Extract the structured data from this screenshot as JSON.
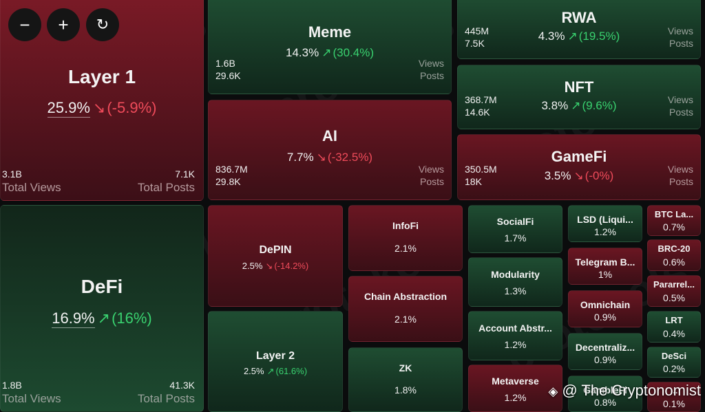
{
  "controls": {
    "zoom_out": "−",
    "zoom_in": "+",
    "refresh": "↻"
  },
  "watermark": "protokols",
  "credit": "@ The Cryptonomist",
  "views_label": "Views",
  "posts_label": "Posts",
  "total_views_label": "Total Views",
  "total_posts_label": "Total Posts",
  "tiles": [
    {
      "name": "Layer 1",
      "share": "25.9%",
      "change": "(-5.9%)",
      "dir": "down",
      "views": "3.1B",
      "posts": "7.1K",
      "style": "big"
    },
    {
      "name": "Meme",
      "share": "14.3%",
      "change": "(30.4%)",
      "dir": "up",
      "views": "1.6B",
      "posts": "29.6K",
      "style": "mid"
    },
    {
      "name": "RWA",
      "share": "4.3%",
      "change": "(19.5%)",
      "dir": "up",
      "views": "445M",
      "posts": "7.5K",
      "style": "side"
    },
    {
      "name": "NFT",
      "share": "3.8%",
      "change": "(9.6%)",
      "dir": "up",
      "views": "368.7M",
      "posts": "14.6K",
      "style": "side"
    },
    {
      "name": "AI",
      "share": "7.7%",
      "change": "(-32.5%)",
      "dir": "down",
      "views": "836.7M",
      "posts": "29.8K",
      "style": "mid"
    },
    {
      "name": "GameFi",
      "share": "3.5%",
      "change": "(-0%)",
      "dir": "down",
      "views": "350.5M",
      "posts": "18K",
      "style": "side"
    },
    {
      "name": "DeFi",
      "share": "16.9%",
      "change": "(16%)",
      "dir": "up",
      "views": "1.8B",
      "posts": "41.3K",
      "style": "big"
    },
    {
      "name": "DePIN",
      "share": "2.5%",
      "change": "(-14.2%)",
      "dir": "down",
      "style": "small"
    },
    {
      "name": "Layer 2",
      "share": "2.5%",
      "change": "(61.6%)",
      "dir": "up",
      "style": "small"
    },
    {
      "name": "InfoFi",
      "share": "2.1%",
      "style": "tiny"
    },
    {
      "name": "Chain Abstraction",
      "share": "2.1%",
      "style": "tiny"
    },
    {
      "name": "ZK",
      "share": "1.8%",
      "style": "tiny"
    },
    {
      "name": "SocialFi",
      "share": "1.7%",
      "style": "tiny"
    },
    {
      "name": "Modularity",
      "share": "1.3%",
      "style": "tiny"
    },
    {
      "name": "Account Abstr...",
      "share": "1.2%",
      "style": "tiny"
    },
    {
      "name": "Metaverse",
      "share": "1.2%",
      "style": "tiny"
    },
    {
      "name": "LSD (Liqui...",
      "share": "1.2%",
      "style": "tiny"
    },
    {
      "name": "Telegram B...",
      "share": "1%",
      "style": "tiny"
    },
    {
      "name": "Omnichain",
      "share": "0.9%",
      "style": "tiny"
    },
    {
      "name": "Decentraliz...",
      "share": "0.9%",
      "style": "tiny"
    },
    {
      "name": "GambleFi",
      "share": "0.8%",
      "style": "tiny"
    },
    {
      "name": "BTC La...",
      "share": "0.7%",
      "style": "micro"
    },
    {
      "name": "BRC-20",
      "share": "0.6%",
      "style": "micro"
    },
    {
      "name": "Pararrel...",
      "share": "0.5%",
      "style": "micro"
    },
    {
      "name": "LRT",
      "share": "0.4%",
      "style": "micro"
    },
    {
      "name": "DeSci",
      "share": "0.2%",
      "style": "micro"
    },
    {
      "name": "...",
      "share": "0.1%",
      "style": "micro"
    }
  ],
  "colors": {
    "up": "#39d16f",
    "down": "#ef4b5a",
    "red_tile": "#6a1622",
    "green_tile": "#1f4d32"
  }
}
